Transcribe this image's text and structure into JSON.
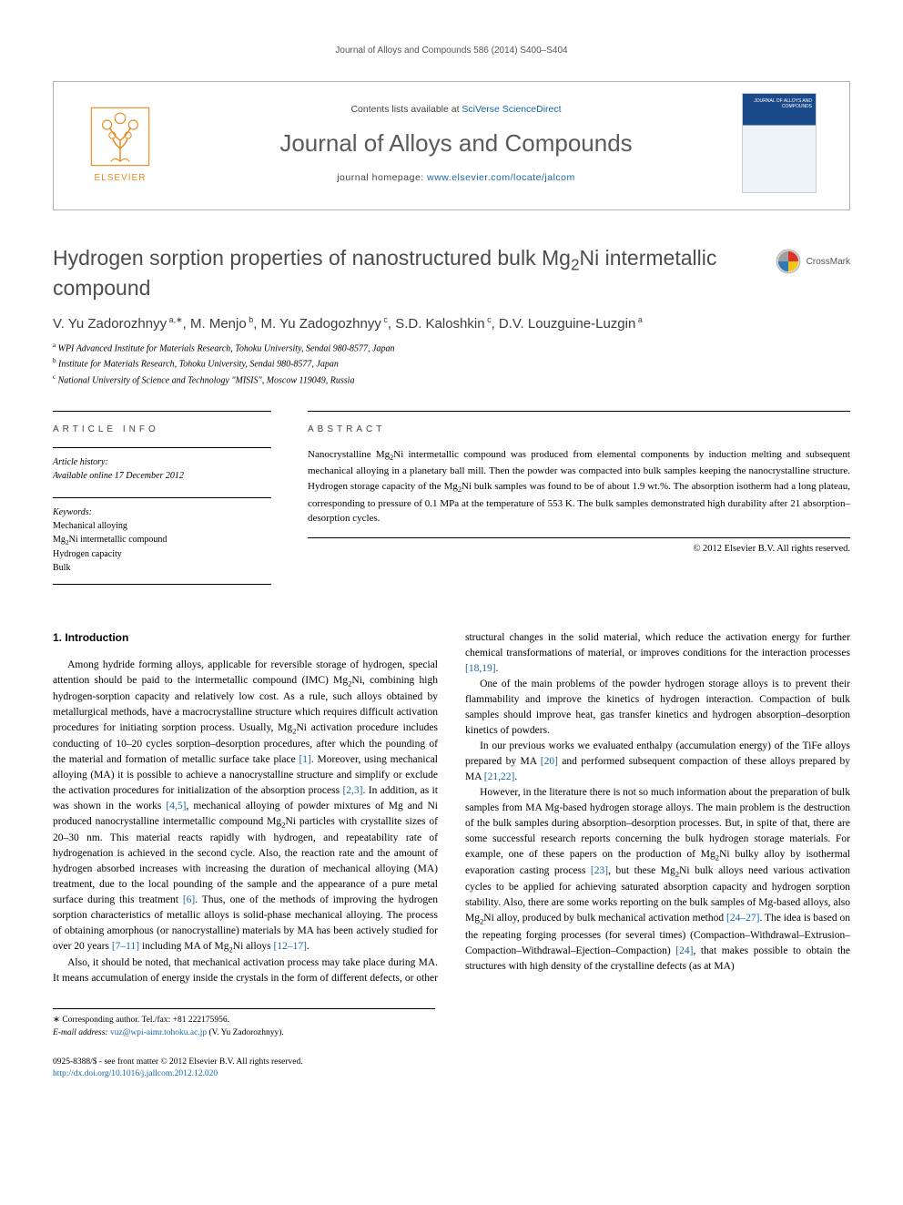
{
  "running_header": "Journal of Alloys and Compounds 586 (2014) S400–S404",
  "header": {
    "publisher_logo_text": "ELSEVIER",
    "contents_prefix": "Contents lists available at ",
    "contents_link": "SciVerse ScienceDirect",
    "journal_title": "Journal of Alloys and Compounds",
    "homepage_prefix": "journal homepage: ",
    "homepage_link": "www.elsevier.com/locate/jalcom",
    "cover_title": "JOURNAL OF ALLOYS AND COMPOUNDS"
  },
  "crossmark_label": "CrossMark",
  "article": {
    "title_html": "Hydrogen sorption properties of nanostructured bulk Mg<sub>2</sub>Ni intermetallic compound",
    "authors_html": "V. Yu Zadorozhnyy<sup> a,∗</sup>, M. Menjo<sup> b</sup>, M. Yu Zadogozhnyy<sup> c</sup>, S.D. Kaloshkin<sup> c</sup>, D.V. Louzguine-Luzgin<sup> a</sup>",
    "affiliations": [
      "<sup>a</sup> WPI Advanced Institute for Materials Research, Tohoku University, Sendai 980-8577, Japan",
      "<sup>b</sup> Institute for Materials Research, Tohoku University, Sendai 980-8577, Japan",
      "<sup>c</sup> National University of Science and Technology \"MISIS\", Moscow 119049, Russia"
    ]
  },
  "info": {
    "article_info_label": "ARTICLE INFO",
    "abstract_label": "ABSTRACT",
    "history_label": "Article history:",
    "history_line": "Available online 17 December 2012",
    "keywords_label": "Keywords:",
    "keywords": [
      "Mechanical alloying",
      "Mg<sub>2</sub>Ni intermetallic compound",
      "Hydrogen capacity",
      "Bulk"
    ],
    "abstract_html": "Nanocrystalline Mg<sub>2</sub>Ni intermetallic compound was produced from elemental components by induction melting and subsequent mechanical alloying in a planetary ball mill. Then the powder was compacted into bulk samples keeping the nanocrystalline structure. Hydrogen storage capacity of the Mg<sub>2</sub>Ni bulk samples was found to be of about 1.9 wt.%. The absorption isotherm had a long plateau, corresponding to pressure of 0.1 MPa at the temperature of 553 K. The bulk samples demonstrated high durability after 21 absorption–desorption cycles.",
    "copyright": "© 2012 Elsevier B.V. All rights reserved."
  },
  "body": {
    "section_number": "1.",
    "section_title": "Introduction",
    "p1_html": "Among hydride forming alloys, applicable for reversible storage of hydrogen, special attention should be paid to the intermetallic compound (IMC) Mg<sub>2</sub>Ni, combining high hydrogen-sorption capacity and relatively low cost. As a rule, such alloys obtained by metallurgical methods, have a macrocrystalline structure which requires difficult activation procedures for initiating sorption process. Usually, Mg<sub>2</sub>Ni activation procedure includes conducting of 10–20 cycles sorption–desorption procedures, after which the pounding of the material and formation of metallic surface take place <span class=\"ref\">[1]</span>. Moreover, using mechanical alloying (MA) it is possible to achieve a nanocrystalline structure and simplify or exclude the activation procedures for initialization of the absorption process <span class=\"ref\">[2,3]</span>. In addition, as it was shown in the works <span class=\"ref\">[4,5]</span>, mechanical alloying of powder mixtures of Mg and Ni produced nanocrystalline intermetallic compound Mg<sub>2</sub>Ni particles with crystallite sizes of 20–30 nm. This material reacts rapidly with hydrogen, and repeatability rate of hydrogenation is achieved in the second cycle. Also, the reaction rate and the amount of hydrogen absorbed increases with increasing the duration of mechanical alloying (MA) treatment, due to the local pounding of the sample and the appearance of a pure metal surface during this treatment <span class=\"ref\">[6]</span>. Thus, one of the methods of improving the hydrogen sorption characteristics of metallic alloys is solid-phase mechanical alloying. The process of obtaining amorphous (or nanocrystalline) materials by MA has been actively studied for over 20 years <span class=\"ref\">[7–11]</span> including MA of Mg<sub>2</sub>Ni alloys <span class=\"ref\">[12–17]</span>.",
    "p2_html": "Also, it should be noted, that mechanical activation process may take place during MA. It means accumulation of energy inside the crystals in the form of different defects, or other structural changes in the solid material, which reduce the activation energy for further chemical transformations of material, or improves conditions for the interaction processes <span class=\"ref\">[18,19]</span>.",
    "p3_html": "One of the main problems of the powder hydrogen storage alloys is to prevent their flammability and improve the kinetics of hydrogen interaction. Compaction of bulk samples should improve heat, gas transfer kinetics and hydrogen absorption–desorption kinetics of powders.",
    "p4_html": "In our previous works we evaluated enthalpy (accumulation energy) of the TiFe alloys prepared by MA <span class=\"ref\">[20]</span> and performed subsequent compaction of these alloys prepared by MA <span class=\"ref\">[21,22]</span>.",
    "p5_html": "However, in the literature there is not so much information about the preparation of bulk samples from MA Mg-based hydrogen storage alloys. The main problem is the destruction of the bulk samples during absorption–desorption processes. But, in spite of that, there are some successful research reports concerning the bulk hydrogen storage materials. For example, one of these papers on the production of Mg<sub>2</sub>Ni bulky alloy by isothermal evaporation casting process <span class=\"ref\">[23]</span>, but these Mg<sub>2</sub>Ni bulk alloys need various activation cycles to be applied for achieving saturated absorption capacity and hydrogen sorption stability. Also, there are some works reporting on the bulk samples of Mg-based alloys, also Mg<sub>2</sub>Ni alloy, produced by bulk mechanical activation method <span class=\"ref\">[24–27]</span>. The idea is based on the repeating forging processes (for several times) (Compaction–Withdrawal–Extrusion–Compaction–Withdrawal–Ejection–Compaction) <span class=\"ref\">[24]</span>, that makes possible to obtain the structures with high density of the crystalline defects (as at MA)"
  },
  "footnotes": {
    "corr": "∗ Corresponding author. Tel./fax: +81 222175956.",
    "email_label": "E-mail address:",
    "email": "vuz@wpi-aimr.tohoku.ac.jp",
    "email_name": "(V. Yu Zadorozhnyy)."
  },
  "footer": {
    "line1": "0925-8388/$ - see front matter © 2012 Elsevier B.V. All rights reserved.",
    "doi": "http://dx.doi.org/10.1016/j.jallcom.2012.12.020"
  },
  "colors": {
    "link": "#1765a5",
    "elsevier_orange": "#ea8a1f",
    "header_grey": "#5a5a5a",
    "title_grey": "#4d4d4d"
  }
}
